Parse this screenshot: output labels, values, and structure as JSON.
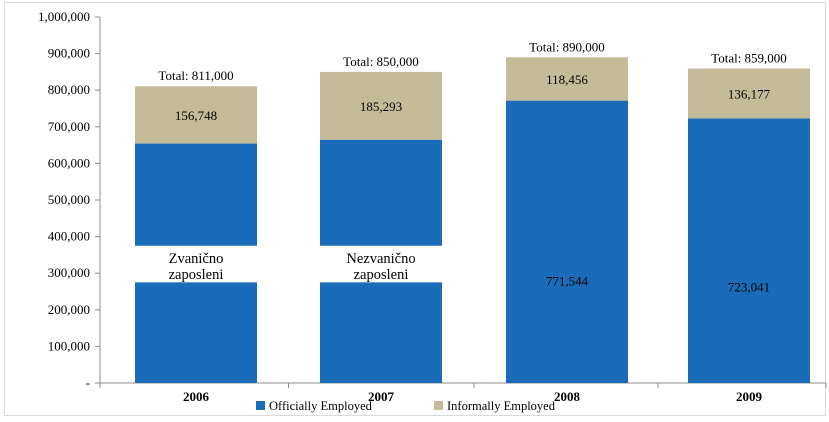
{
  "chart_data": {
    "type": "bar",
    "stacked": true,
    "categories": [
      "2006",
      "2007",
      "2008",
      "2009"
    ],
    "series": [
      {
        "name": "Officially Employed",
        "color": "#1b6cb8",
        "values": [
          654252,
          664707,
          771544,
          723041
        ],
        "labels": [
          "",
          "",
          "771,544",
          "723,041"
        ]
      },
      {
        "name": "Informally Employed",
        "color": "#c4bc98",
        "values": [
          156748,
          185293,
          118456,
          136177
        ],
        "labels": [
          "156,748",
          "185,293",
          "118,456",
          "136,177"
        ]
      }
    ],
    "totals": [
      "Total: 811,000",
      "Total: 850,000",
      "Total: 890,000",
      "Total: 859,000"
    ],
    "overlay_labels": [
      {
        "category": "2006",
        "lines": [
          "Zvanično",
          "zaposleni"
        ]
      },
      {
        "category": "2007",
        "lines": [
          "Nezvanično",
          "zaposleni"
        ]
      }
    ],
    "ylim": [
      0,
      1000000
    ],
    "yticks": [
      0,
      100000,
      200000,
      300000,
      400000,
      500000,
      600000,
      700000,
      800000,
      900000,
      1000000
    ],
    "ytick_labels": [
      "-",
      "100,000",
      "200,000",
      "300,000",
      "400,000",
      "500,000",
      "600,000",
      "700,000",
      "800,000",
      "900,000",
      "1,000,000"
    ],
    "legend_position": "bottom",
    "grid": false
  }
}
